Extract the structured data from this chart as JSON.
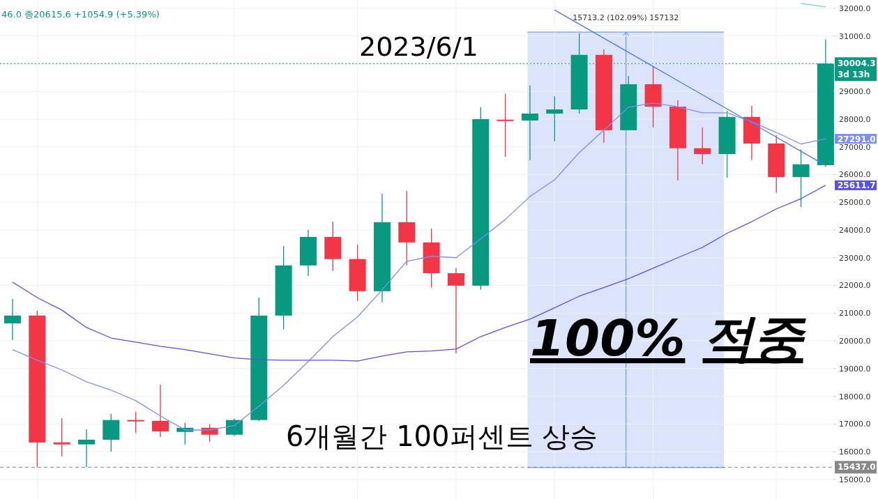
{
  "chart_data": {
    "type": "candlestick",
    "categories": [
      null,
      null,
      null,
      null,
      null,
      null,
      null,
      null,
      null,
      null,
      null,
      null,
      null,
      null,
      null,
      null,
      null,
      null,
      null,
      null,
      null,
      null,
      null,
      null,
      null,
      null,
      null,
      null,
      null,
      null,
      null,
      null,
      null,
      null
    ],
    "ohlc": [
      [
        20630,
        21510,
        20030,
        20910
      ],
      [
        20910,
        21090,
        15440,
        16330
      ],
      [
        16330,
        17210,
        15830,
        16260
      ],
      [
        16260,
        16810,
        15440,
        16430
      ],
      [
        16430,
        17360,
        16000,
        17140
      ],
      [
        17140,
        17440,
        16680,
        17110
      ],
      [
        17110,
        18420,
        16530,
        16730
      ],
      [
        16710,
        17040,
        16260,
        16860
      ],
      [
        16860,
        16990,
        16360,
        16610
      ],
      [
        16610,
        17190,
        16560,
        17140
      ],
      [
        17140,
        21560,
        17100,
        20910
      ],
      [
        20910,
        23420,
        20410,
        22720
      ],
      [
        22720,
        24000,
        22340,
        23750
      ],
      [
        23750,
        24300,
        22520,
        22950
      ],
      [
        22950,
        23470,
        21440,
        21790
      ],
      [
        21790,
        25310,
        21390,
        24280
      ],
      [
        24280,
        25410,
        22720,
        23550
      ],
      [
        23550,
        24050,
        21920,
        22440
      ],
      [
        22440,
        22620,
        19550,
        21990
      ],
      [
        21990,
        28430,
        21840,
        28000
      ],
      [
        27980,
        28910,
        26640,
        27950
      ],
      [
        27950,
        29210,
        26520,
        28200
      ],
      [
        28200,
        28830,
        27200,
        28350
      ],
      [
        28350,
        31100,
        28200,
        30320
      ],
      [
        30320,
        30520,
        27150,
        27600
      ],
      [
        27600,
        29560,
        27600,
        29260
      ],
      [
        29260,
        29890,
        27700,
        28450
      ],
      [
        28450,
        28680,
        25790,
        26950
      ],
      [
        26950,
        27700,
        26370,
        26740
      ],
      [
        26740,
        28300,
        25890,
        28080
      ],
      [
        28080,
        28480,
        26520,
        27120
      ],
      [
        27120,
        27420,
        25340,
        25910
      ],
      [
        25910,
        26900,
        24830,
        26370
      ],
      [
        26340,
        30870,
        26290,
        30004.3
      ]
    ],
    "colors": [
      "#089981",
      "#f23645",
      "#f23645",
      "#089981",
      "#089981",
      "#f23645",
      "#f23645",
      "#089981",
      "#f23645",
      "#089981",
      "#089981",
      "#089981",
      "#089981",
      "#f23645",
      "#f23645",
      "#089981",
      "#f23645",
      "#f23645",
      "#f23645",
      "#089981",
      "#f23645",
      "#089981",
      "#089981",
      "#089981",
      "#f23645",
      "#089981",
      "#f23645",
      "#f23645",
      "#f23645",
      "#089981",
      "#f23645",
      "#f23645",
      "#089981",
      "#089981"
    ],
    "series": [
      {
        "type": "line",
        "color": "#7d8ef2",
        "values": [
          19680,
          19300,
          18950,
          18520,
          18220,
          17840,
          17290,
          16780,
          16780,
          16940,
          17640,
          18390,
          19250,
          20150,
          20860,
          21840,
          22870,
          23050,
          23000,
          23680,
          24380,
          25210,
          25810,
          26790,
          27600,
          28430,
          28580,
          28450,
          28230,
          28230,
          27900,
          27520,
          27100,
          27291
        ],
        "value_labels": [
          null,
          null,
          null,
          null,
          null,
          null,
          null,
          null,
          null,
          null,
          null,
          null,
          null,
          null,
          null,
          null,
          null,
          null,
          null,
          null,
          null,
          null,
          null,
          null,
          null,
          null,
          null,
          null,
          null,
          null,
          null,
          null,
          null,
          "27291.0"
        ]
      },
      {
        "type": "line",
        "color": "#5a4fe8",
        "values": [
          22120,
          21560,
          21110,
          20480,
          20100,
          19950,
          19800,
          19680,
          19530,
          19380,
          19320,
          19300,
          19300,
          19300,
          19270,
          19450,
          19600,
          19630,
          19700,
          20150,
          20480,
          20780,
          21190,
          21610,
          21920,
          22240,
          22620,
          23000,
          23370,
          23880,
          24300,
          24760,
          25130,
          25611.7
        ],
        "value_labels": [
          null,
          null,
          null,
          null,
          null,
          null,
          null,
          null,
          null,
          null,
          null,
          null,
          null,
          null,
          null,
          null,
          null,
          null,
          null,
          null,
          null,
          null,
          null,
          null,
          null,
          null,
          null,
          null,
          null,
          null,
          null,
          null,
          null,
          "25611.7"
        ]
      },
      {
        "type": "line",
        "color": "#6fd3cf",
        "values": [
          null,
          null,
          null,
          null,
          null,
          null,
          null,
          null,
          null,
          null,
          null,
          null,
          null,
          null,
          null,
          null,
          null,
          null,
          null,
          null,
          null,
          null,
          null,
          null,
          null,
          null,
          null,
          null,
          null,
          null,
          null,
          null,
          32180,
          32050
        ]
      },
      {
        "type": "line",
        "color": "#4a7ae8",
        "values": [
          null,
          null,
          null,
          null,
          null,
          null,
          null,
          null,
          null,
          null,
          null,
          null,
          null,
          null,
          null,
          null,
          null,
          null,
          null,
          null,
          null,
          null,
          31940,
          31430,
          30920,
          30410,
          29900,
          29390,
          28880,
          28370,
          27860,
          27350,
          26840,
          26330
        ]
      }
    ],
    "ylim": [
      14290,
      32300
    ],
    "yticks": [
      {
        "value": 15000,
        "label": "15000.0"
      },
      {
        "value": 16000,
        "label": "16000.0"
      },
      {
        "value": 17000,
        "label": "17000.0"
      },
      {
        "value": 18000,
        "label": "18000.0"
      },
      {
        "value": 19000,
        "label": "19000.0"
      },
      {
        "value": 20000,
        "label": "20000.0"
      },
      {
        "value": 21000,
        "label": "21000.0"
      },
      {
        "value": 22000,
        "label": "22000.0"
      },
      {
        "value": 23000,
        "label": "23000.0"
      },
      {
        "value": 24000,
        "label": "24000.0"
      },
      {
        "value": 25000,
        "label": "25000.0"
      },
      {
        "value": 26000,
        "label": "26000.0"
      },
      {
        "value": 27000,
        "label": "27000.0"
      },
      {
        "value": 28000,
        "label": "28000.0"
      },
      {
        "value": 29000,
        "label": "29000.0"
      },
      {
        "value": 30000,
        "label": null
      },
      {
        "value": 31000,
        "label": "31000.0"
      },
      {
        "value": 32000,
        "label": "32000.0"
      }
    ],
    "tick_labels": "y",
    "grid": true,
    "ref_lines": [
      {
        "axis": "y",
        "value": 30004.3,
        "color": "#089981",
        "line_style": "dotted",
        "label": "30004.3\n3d 13h"
      },
      {
        "axis": "y",
        "value": 15437,
        "color": "#888888",
        "line_style": "dashed",
        "label": "15437.0"
      }
    ],
    "annotations": [
      "46.0 종20615.6 +1054.9 (+5.39%)",
      "2023/6/1",
      "100% 적중",
      "6개월간 100퍼센트 상승",
      "15713.2 (102.09%) 157132"
    ]
  }
}
